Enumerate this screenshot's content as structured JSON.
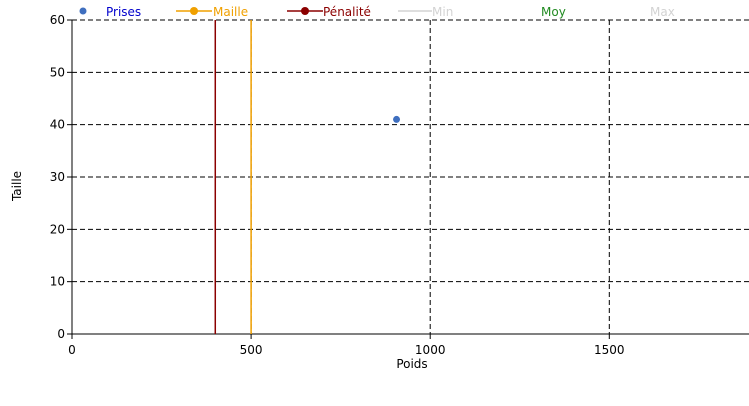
{
  "chart_data": {
    "type": "scatter",
    "xlabel": "Poids",
    "ylabel": "Taille",
    "xlim": [
      0,
      1890
    ],
    "ylim": [
      0,
      60
    ],
    "x_ticks": [
      0,
      500,
      1000,
      1500
    ],
    "y_ticks": [
      0,
      10,
      20,
      30,
      40,
      50,
      60
    ],
    "grid": true,
    "legend_position": "top",
    "series": [
      {
        "name": "Prises",
        "type": "scatter",
        "color": "#3f6fbf",
        "label_color": "#0000cc",
        "points": [
          {
            "x": 906,
            "y": 41
          }
        ]
      },
      {
        "name": "Maille",
        "type": "vline",
        "color": "#f0a000",
        "label_color": "#f0a000",
        "x": 500
      },
      {
        "name": "Pénalité",
        "type": "vline",
        "color": "#8b0000",
        "label_color": "#8b0000",
        "x": 400
      },
      {
        "name": "Min",
        "type": "line",
        "color": "#d3d3d3",
        "label_color": "#d3d3d3",
        "points": []
      },
      {
        "name": "Moy",
        "type": "line",
        "color": "#228b22",
        "label_color": "#228b22",
        "points": []
      },
      {
        "name": "Max",
        "type": "line",
        "color": "#d3d3d3",
        "label_color": "#d3d3d3",
        "points": []
      }
    ]
  }
}
